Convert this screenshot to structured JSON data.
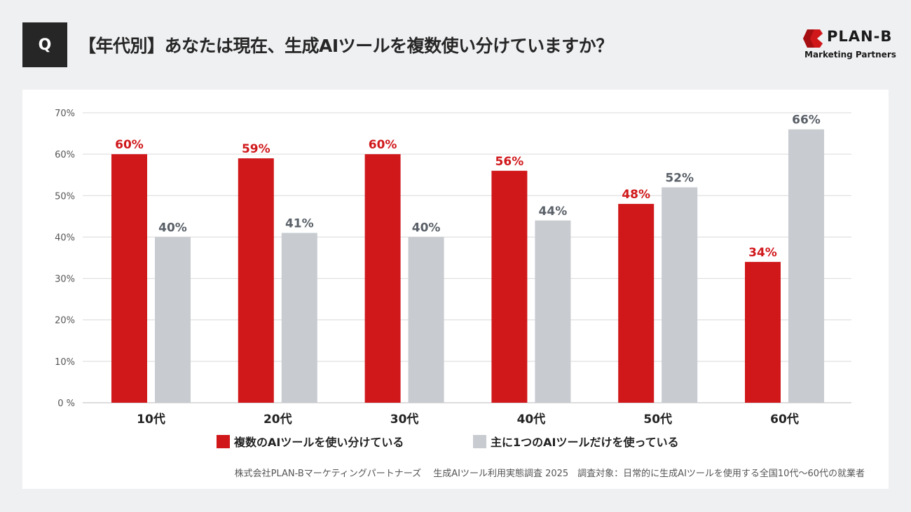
{
  "header": {
    "q_label": "Q",
    "title": "【年代別】あなたは現在、生成AIツールを複数使い分けていますか？"
  },
  "logo": {
    "name": "PLAN-B",
    "subtitle": "Marketing Partners",
    "color": "#d0181b"
  },
  "chart_data": {
    "type": "bar",
    "categories": [
      "10代",
      "20代",
      "30代",
      "40代",
      "50代",
      "60代"
    ],
    "series": [
      {
        "name": "複数のAIツールを使い分けている",
        "values": [
          60,
          59,
          60,
          56,
          48,
          34
        ],
        "color": "#d0181b",
        "label_color": "#d0181b"
      },
      {
        "name": "主に1つのAIツールだけを使っている",
        "values": [
          40,
          41,
          40,
          44,
          52,
          66
        ],
        "color": "#c8cbd0",
        "label_color": "#5a6068"
      }
    ],
    "value_suffix": "%",
    "yticks": [
      "0 %",
      "10%",
      "20%",
      "30%",
      "40%",
      "50%",
      "60%",
      "70%"
    ],
    "ylim": [
      0,
      70
    ],
    "grid": true,
    "legend_position": "bottom"
  },
  "footer": "株式会社PLAN-Bマーケティングパートナーズ　 生成AIツール利用実態調査 2025　調査対象：日常的に生成AIツールを使用する全国10代〜60代の就業者"
}
